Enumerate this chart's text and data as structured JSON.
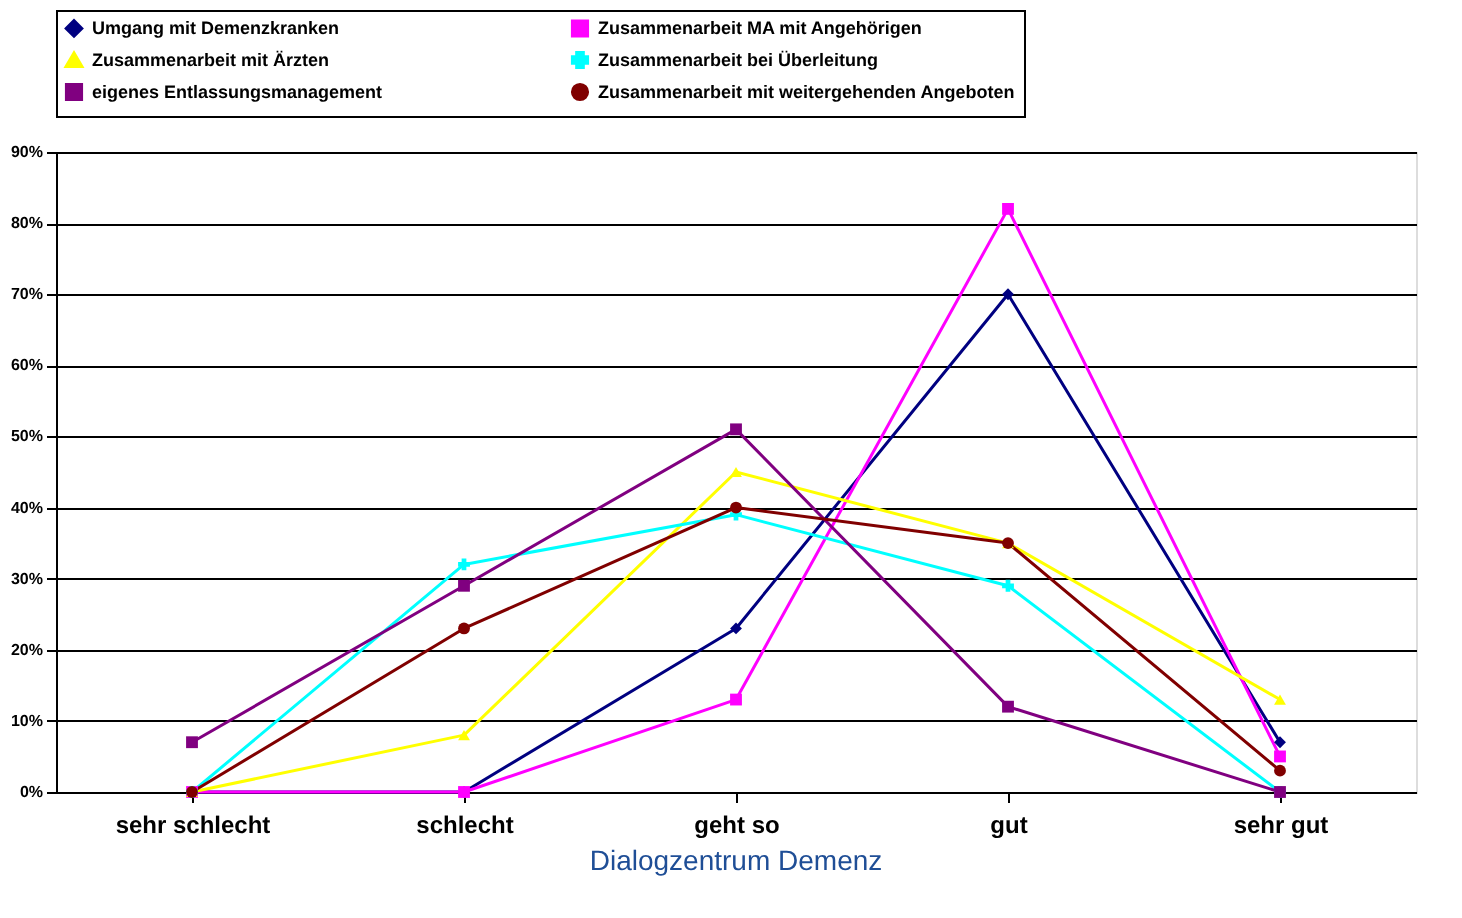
{
  "chart_data": {
    "type": "line",
    "title": "Dialogzentrum Demenz",
    "categories": [
      "sehr schlecht",
      "schlecht",
      "geht so",
      "gut",
      "sehr gut"
    ],
    "series": [
      {
        "name": "Umgang mit Demenzkranken",
        "color": "#000080",
        "marker": "diamond",
        "values": [
          0,
          0,
          23,
          70,
          7
        ]
      },
      {
        "name": "Zusammenarbeit MA mit Angehörigen",
        "color": "#ff00ff",
        "marker": "square",
        "values": [
          0,
          0,
          13,
          82,
          5
        ]
      },
      {
        "name": "Zusammenarbeit mit Ärzten",
        "color": "#ffff00",
        "marker": "triangle",
        "values": [
          0,
          8,
          45,
          35,
          13
        ]
      },
      {
        "name": "Zusammenarbeit bei Überleitung",
        "color": "#00ffff",
        "marker": "cross",
        "values": [
          0,
          32,
          39,
          29,
          0
        ]
      },
      {
        "name": "eigenes Entlassungsmanagement",
        "color": "#800080",
        "marker": "square",
        "values": [
          7,
          29,
          51,
          12,
          0
        ]
      },
      {
        "name": "Zusammenarbeit mit weitergehenden Angeboten",
        "color": "#800000",
        "marker": "circle",
        "values": [
          0,
          23,
          40,
          35,
          3
        ]
      }
    ],
    "ylim": [
      0,
      90
    ],
    "yticks": [
      {
        "value": 0,
        "label": "0%"
      },
      {
        "value": 10,
        "label": "10%"
      },
      {
        "value": 20,
        "label": "20%"
      },
      {
        "value": 30,
        "label": "30%"
      },
      {
        "value": 40,
        "label": "40%"
      },
      {
        "value": 50,
        "label": "50%"
      },
      {
        "value": 60,
        "label": "60%"
      },
      {
        "value": 70,
        "label": "70%"
      },
      {
        "value": 80,
        "label": "80%"
      },
      {
        "value": 90,
        "label": "90%"
      }
    ],
    "grid": "y",
    "legend": "top",
    "line_style": "solid"
  }
}
